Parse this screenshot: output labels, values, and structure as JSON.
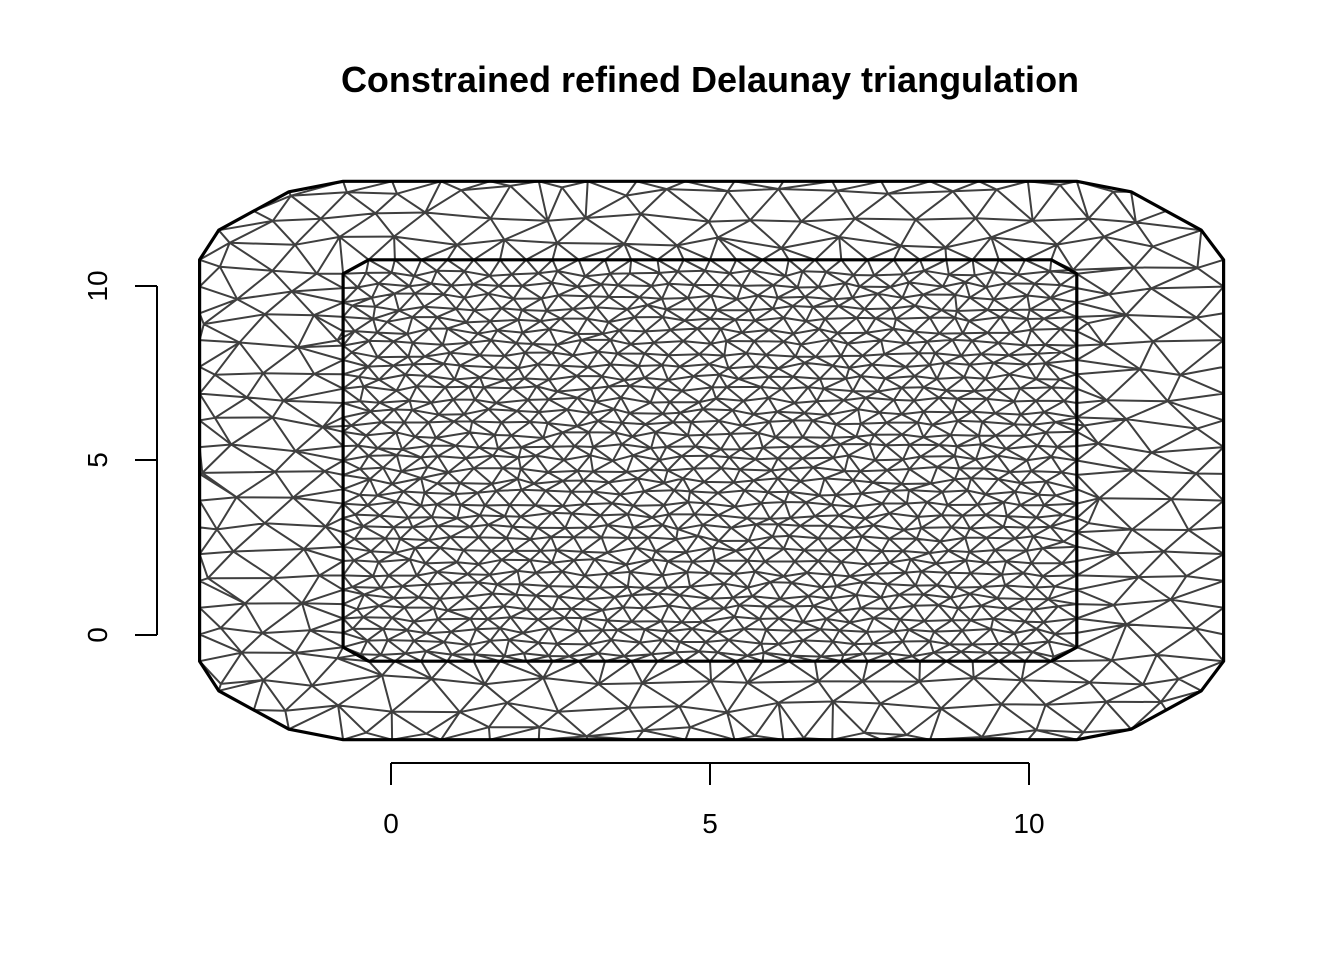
{
  "chart_data": {
    "type": "mesh",
    "title": "Constrained refined Delaunay triangulation",
    "xlabel": "",
    "ylabel": "",
    "x_ticks": [
      0,
      5,
      10
    ],
    "y_ticks": [
      0,
      5,
      10
    ],
    "x_tick_labels": [
      "0",
      "5",
      "10"
    ],
    "y_tick_labels": [
      "0",
      "5",
      "10"
    ],
    "xlim": [
      -3,
      13.5
    ],
    "ylim": [
      -3.5,
      13.0
    ],
    "outer_boundary": [
      [
        -3.0,
        -0.75
      ],
      [
        -2.7,
        -1.6
      ],
      [
        -1.6,
        -2.7
      ],
      [
        -0.75,
        -3.0
      ],
      [
        10.75,
        -3.0
      ],
      [
        11.6,
        -2.7
      ],
      [
        12.7,
        -1.6
      ],
      [
        13.05,
        -0.75
      ],
      [
        13.05,
        10.75
      ],
      [
        12.7,
        11.6
      ],
      [
        11.6,
        12.7
      ],
      [
        10.75,
        13.0
      ],
      [
        -0.75,
        13.0
      ],
      [
        -1.6,
        12.7
      ],
      [
        -2.7,
        11.6
      ],
      [
        -3.0,
        10.75
      ]
    ],
    "inner_boundary": [
      [
        -0.75,
        -0.35
      ],
      [
        -0.35,
        -0.75
      ],
      [
        10.35,
        -0.75
      ],
      [
        10.75,
        -0.35
      ],
      [
        10.75,
        10.35
      ],
      [
        10.35,
        10.75
      ],
      [
        -0.35,
        10.75
      ],
      [
        -0.75,
        10.35
      ]
    ],
    "mesh": {
      "inner_spacing": 0.38,
      "outer_spacing": 0.85,
      "edge_color": "#3f3f3f",
      "boundary_color": "#000000"
    }
  }
}
